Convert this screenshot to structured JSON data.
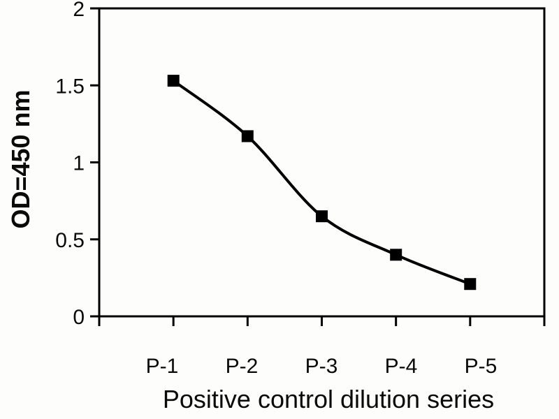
{
  "chart_data": {
    "type": "line",
    "title": "",
    "xlabel": "Positive control dilution series",
    "ylabel": "OD=450 nm",
    "categories": [
      "P-1",
      "P-2",
      "P-3",
      "P-4",
      "P-5"
    ],
    "values": [
      1.53,
      1.17,
      0.65,
      0.4,
      0.21
    ],
    "y_ticks": [
      0,
      0.5,
      1,
      1.5,
      2
    ],
    "y_tick_labels": [
      "0",
      "0.5",
      "1",
      "1.5",
      "2"
    ],
    "ylim": [
      0,
      2
    ],
    "grid": false,
    "legend": false,
    "smooth_line": true,
    "marker": "square",
    "line_color": "#000000",
    "marker_color": "#000000",
    "axis_color": "#000000",
    "text_color": "#0a0a0a",
    "plot_border": true,
    "background": "#fdfdfc"
  }
}
